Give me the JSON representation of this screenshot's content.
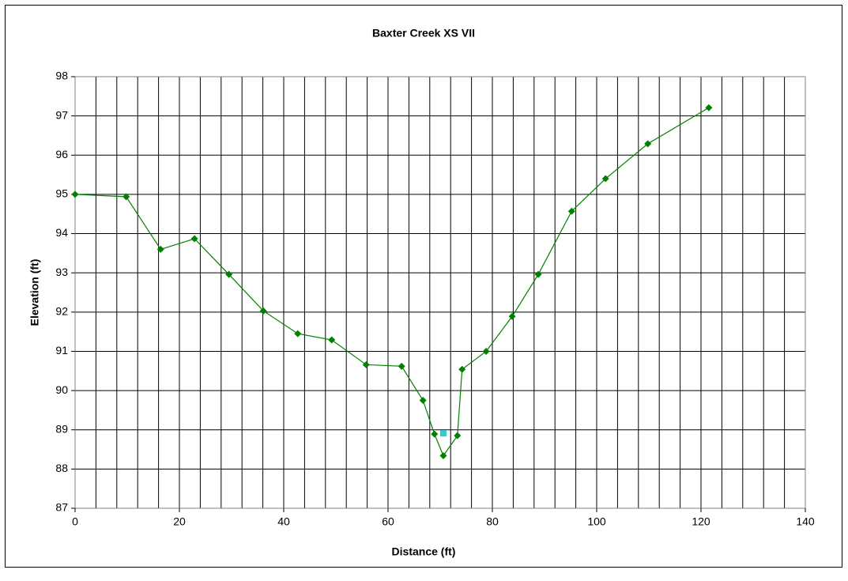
{
  "chart_data": {
    "type": "line",
    "title": "Baxter Creek XS VII",
    "x_label": "Distance (ft)",
    "y_label": "Elevation (ft)",
    "xlim": [
      0,
      140
    ],
    "ylim": [
      87,
      98
    ],
    "xticks": [
      0,
      20,
      40,
      60,
      80,
      100,
      120,
      140
    ],
    "yticks": [
      87,
      88,
      89,
      90,
      91,
      92,
      93,
      94,
      95,
      96,
      97,
      98
    ],
    "xgrid": [
      0,
      4,
      8,
      12,
      16,
      20,
      24,
      28,
      32,
      36,
      40,
      44,
      48,
      52,
      56,
      60,
      64,
      68,
      72,
      76,
      80,
      84,
      88,
      92,
      96,
      100,
      104,
      108,
      112,
      116,
      120,
      124,
      128,
      132,
      136,
      140
    ],
    "grid": true,
    "series": [
      {
        "color": "#008000",
        "marker": "diamond",
        "line": true,
        "x": [
          0,
          9.8,
          16.4,
          22.9,
          29.5,
          36.1,
          42.7,
          49.2,
          55.8,
          62.6,
          66.7,
          68.9,
          70.6,
          73.3,
          74.2,
          78.8,
          83.8,
          88.8,
          95.2,
          101.7,
          109.8,
          121.5
        ],
        "values": [
          95.0,
          94.94,
          93.6,
          93.87,
          92.96,
          92.03,
          91.45,
          91.29,
          90.66,
          90.62,
          89.75,
          88.89,
          88.34,
          88.85,
          90.54,
          91.0,
          91.89,
          92.96,
          94.57,
          95.4,
          96.29,
          97.21
        ]
      },
      {
        "color": "#33cccc",
        "marker": "square",
        "line": false,
        "x": [
          70.6
        ],
        "values": [
          88.91
        ]
      }
    ]
  }
}
